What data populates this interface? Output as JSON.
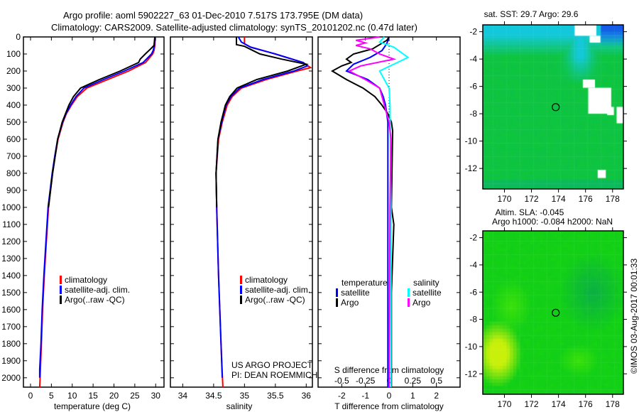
{
  "title": {
    "line1": "Argo profile: aoml 5902227_63 01-Dec-2010 7.517S 173.795E (DM data)",
    "line2": "Climatology: CARS2009. Satellite-adjusted climatology: synTS_20101202.nc (0.47d later)"
  },
  "colors": {
    "climatology": "#ff0000",
    "satellite": "#0000ff",
    "argo": "#000000",
    "sal_satellite": "#00ffff",
    "sal_argo": "#ff00ff"
  },
  "credits": {
    "line1": "US ARGO PROJECT",
    "line2": "PI: DEAN ROEMMICH",
    "copyright": "©IMOS 03-Aug-2017 00:01:33"
  },
  "chart_data": [
    {
      "type": "line",
      "name": "temperature-profile",
      "xlabel": "temperature (deg C)",
      "ylabel": "",
      "xlim": [
        -1.7,
        32
      ],
      "ylim": [
        0,
        2055
      ],
      "y_reversed": true,
      "xticks": [
        0,
        5,
        10,
        15,
        20,
        25,
        30
      ],
      "yticks": [
        0,
        100,
        200,
        300,
        400,
        500,
        600,
        700,
        800,
        900,
        1000,
        1100,
        1200,
        1300,
        1400,
        1500,
        1600,
        1700,
        1800,
        1900,
        2000
      ],
      "legend": [
        "climatology",
        "satellite-adj. clim.",
        "Argo(..raw -QC)"
      ],
      "series": [
        {
          "name": "climatology",
          "color": "#ff0000",
          "depth": [
            0,
            50,
            80,
            100,
            150,
            200,
            250,
            300,
            350,
            400,
            450,
            500,
            600,
            700,
            800,
            900,
            1000,
            1200,
            1400,
            1600,
            1800,
            2000,
            2055
          ],
          "values": [
            29.9,
            29.8,
            29.6,
            29.3,
            27.6,
            23.5,
            18.5,
            13.5,
            11.2,
            9.8,
            8.6,
            7.8,
            6.6,
            5.9,
            5.3,
            4.8,
            4.3,
            3.8,
            3.3,
            2.9,
            2.6,
            2.3,
            2.2
          ]
        },
        {
          "name": "satellite-adj. clim.",
          "color": "#0000ff",
          "depth": [
            0,
            50,
            80,
            100,
            150,
            200,
            250,
            300,
            350,
            400,
            450,
            500,
            600,
            700,
            800,
            900,
            1000,
            1200,
            1400,
            1600,
            1800,
            1950,
            2000
          ],
          "values": [
            29.8,
            29.7,
            29.4,
            29.0,
            27.0,
            22.5,
            17.5,
            12.8,
            10.9,
            9.6,
            8.5,
            7.7,
            6.5,
            5.8,
            5.2,
            4.7,
            4.2,
            3.7,
            3.2,
            2.8,
            2.5,
            2.2,
            2.2
          ]
        },
        {
          "name": "Argo(..raw -QC)",
          "color": "#000000",
          "depth": [
            0,
            50,
            70,
            100,
            130,
            150,
            200,
            250,
            300,
            350,
            400,
            450,
            500,
            600,
            700,
            800,
            900,
            1000
          ],
          "values": [
            29.8,
            29.6,
            28.8,
            27.5,
            26.3,
            25.9,
            21.5,
            16.5,
            12.0,
            10.3,
            9.2,
            8.4,
            7.6,
            6.5,
            5.9,
            5.3,
            4.8,
            4.3
          ]
        }
      ]
    },
    {
      "type": "line",
      "name": "salinity-profile",
      "xlabel": "salinity",
      "ylabel": "",
      "xlim": [
        33.8,
        36.1
      ],
      "ylim": [
        0,
        2055
      ],
      "y_reversed": true,
      "xticks": [
        34,
        34.5,
        35,
        35.5,
        36
      ],
      "legend": [
        "climatology",
        "satellite-adj. clim.",
        "Argo(..raw -QC)"
      ],
      "series": [
        {
          "name": "climatology",
          "color": "#ff0000",
          "depth": [
            0,
            40,
            60,
            100,
            150,
            180,
            200,
            250,
            300,
            350,
            400,
            500,
            600,
            800,
            1000,
            1400,
            1800,
            2055
          ],
          "values": [
            35.0,
            35.0,
            35.1,
            35.5,
            35.95,
            36.07,
            35.85,
            35.35,
            34.95,
            34.8,
            34.72,
            34.64,
            34.58,
            34.54,
            34.55,
            34.58,
            34.62,
            34.65
          ]
        },
        {
          "name": "satellite-adj. clim.",
          "color": "#0000ff",
          "depth": [
            0,
            30,
            60,
            100,
            150,
            170,
            200,
            250,
            300,
            350,
            400,
            500,
            600,
            800,
            1000,
            1400,
            1800,
            2000
          ],
          "values": [
            34.9,
            34.95,
            35.1,
            35.5,
            35.95,
            36.02,
            35.8,
            35.3,
            34.92,
            34.78,
            34.7,
            34.63,
            34.57,
            34.54,
            34.55,
            34.58,
            34.62,
            34.64
          ]
        },
        {
          "name": "Argo(..raw -QC)",
          "color": "#000000",
          "depth": [
            0,
            45,
            55,
            100,
            130,
            160,
            200,
            250,
            300,
            350,
            400,
            500,
            600,
            800,
            1000
          ],
          "values": [
            34.87,
            34.87,
            35.0,
            35.25,
            35.6,
            36.0,
            35.7,
            35.2,
            34.88,
            34.76,
            34.69,
            34.62,
            34.57,
            34.54,
            34.55
          ]
        }
      ]
    },
    {
      "type": "line",
      "name": "difference-profile",
      "xlabel": "T difference from climatology",
      "x2label": "S difference from climatology",
      "xlim": [
        -3,
        3
      ],
      "x2lim": [
        -0.75,
        0.75
      ],
      "ylim": [
        0,
        2055
      ],
      "y_reversed": true,
      "xticks": [
        -2,
        -1,
        0,
        1,
        2
      ],
      "x2ticks": [
        -0.5,
        -0.25,
        0,
        0.25,
        0.5
      ],
      "legend_headers": [
        "temperature",
        "salinity"
      ],
      "legend": [
        "satellite",
        "Argo",
        "satellite",
        "Argo"
      ],
      "series": [
        {
          "name": "T satellite",
          "axis": "T",
          "color": "#0000ff",
          "depth": [
            0,
            40,
            80,
            120,
            160,
            200,
            250,
            300,
            350,
            400,
            500,
            1000,
            1500,
            2055
          ],
          "values": [
            0,
            -0.1,
            -0.3,
            -0.8,
            -1.5,
            -1.8,
            -0.9,
            -0.4,
            -0.25,
            -0.15,
            -0.05,
            -0.05,
            -0.05,
            -0.05
          ]
        },
        {
          "name": "T Argo",
          "axis": "T",
          "color": "#000000",
          "depth": [
            0,
            20,
            70,
            100,
            130,
            150,
            170,
            200,
            250,
            300,
            350,
            400,
            450,
            500,
            550,
            1000,
            1100,
            1500,
            2055
          ],
          "values": [
            0,
            -0.1,
            -0.7,
            -1.5,
            -1.8,
            -1.6,
            -2.0,
            -2.4,
            -1.8,
            -1.1,
            -0.6,
            -0.3,
            -0.05,
            0.1,
            0.15,
            0.1,
            0.2,
            0.1,
            0.1
          ]
        },
        {
          "name": "S satellite",
          "axis": "S",
          "color": "#00ffff",
          "depth": [
            0,
            30,
            60,
            120,
            160,
            200,
            250,
            300,
            400,
            1000,
            2055
          ],
          "values": [
            -0.05,
            -0.1,
            0.05,
            0.2,
            0.05,
            -0.1,
            -0.05,
            0,
            0.01,
            0.02,
            0.02
          ]
        },
        {
          "name": "S Argo",
          "axis": "S",
          "color": "#ff00ff",
          "depth": [
            0,
            20,
            35,
            50,
            70,
            100,
            130,
            170,
            200,
            250,
            300,
            400,
            500,
            600,
            1000,
            2055
          ],
          "values": [
            -0.1,
            -0.35,
            -0.25,
            -0.35,
            -0.2,
            -0.1,
            0.05,
            -0.3,
            -0.42,
            -0.25,
            -0.1,
            -0.05,
            0,
            0.02,
            0.01,
            0.0
          ]
        }
      ]
    },
    {
      "type": "heatmap",
      "name": "sst-map",
      "title": "sat. SST: 29.7 Argo: 29.6",
      "xlim": [
        168.4,
        178.8
      ],
      "ylim": [
        -13.5,
        -1.5
      ],
      "xticks": [
        170,
        172,
        174,
        176,
        178
      ],
      "yticks": [
        -2,
        -4,
        -6,
        -8,
        -10,
        -12
      ],
      "argo_position": [
        173.795,
        -7.517
      ]
    },
    {
      "type": "heatmap",
      "name": "sla-map",
      "title_line1": "Altim. SLA: -0.045",
      "title_line2": "Argo h1000: -0.084 h2000: NaN",
      "xlim": [
        168.4,
        178.8
      ],
      "ylim": [
        -13.5,
        -1.5
      ],
      "xticks": [
        170,
        172,
        174,
        176,
        178
      ],
      "yticks": [
        -2,
        -4,
        -6,
        -8,
        -10,
        -12
      ],
      "argo_position": [
        173.795,
        -7.517
      ]
    }
  ]
}
